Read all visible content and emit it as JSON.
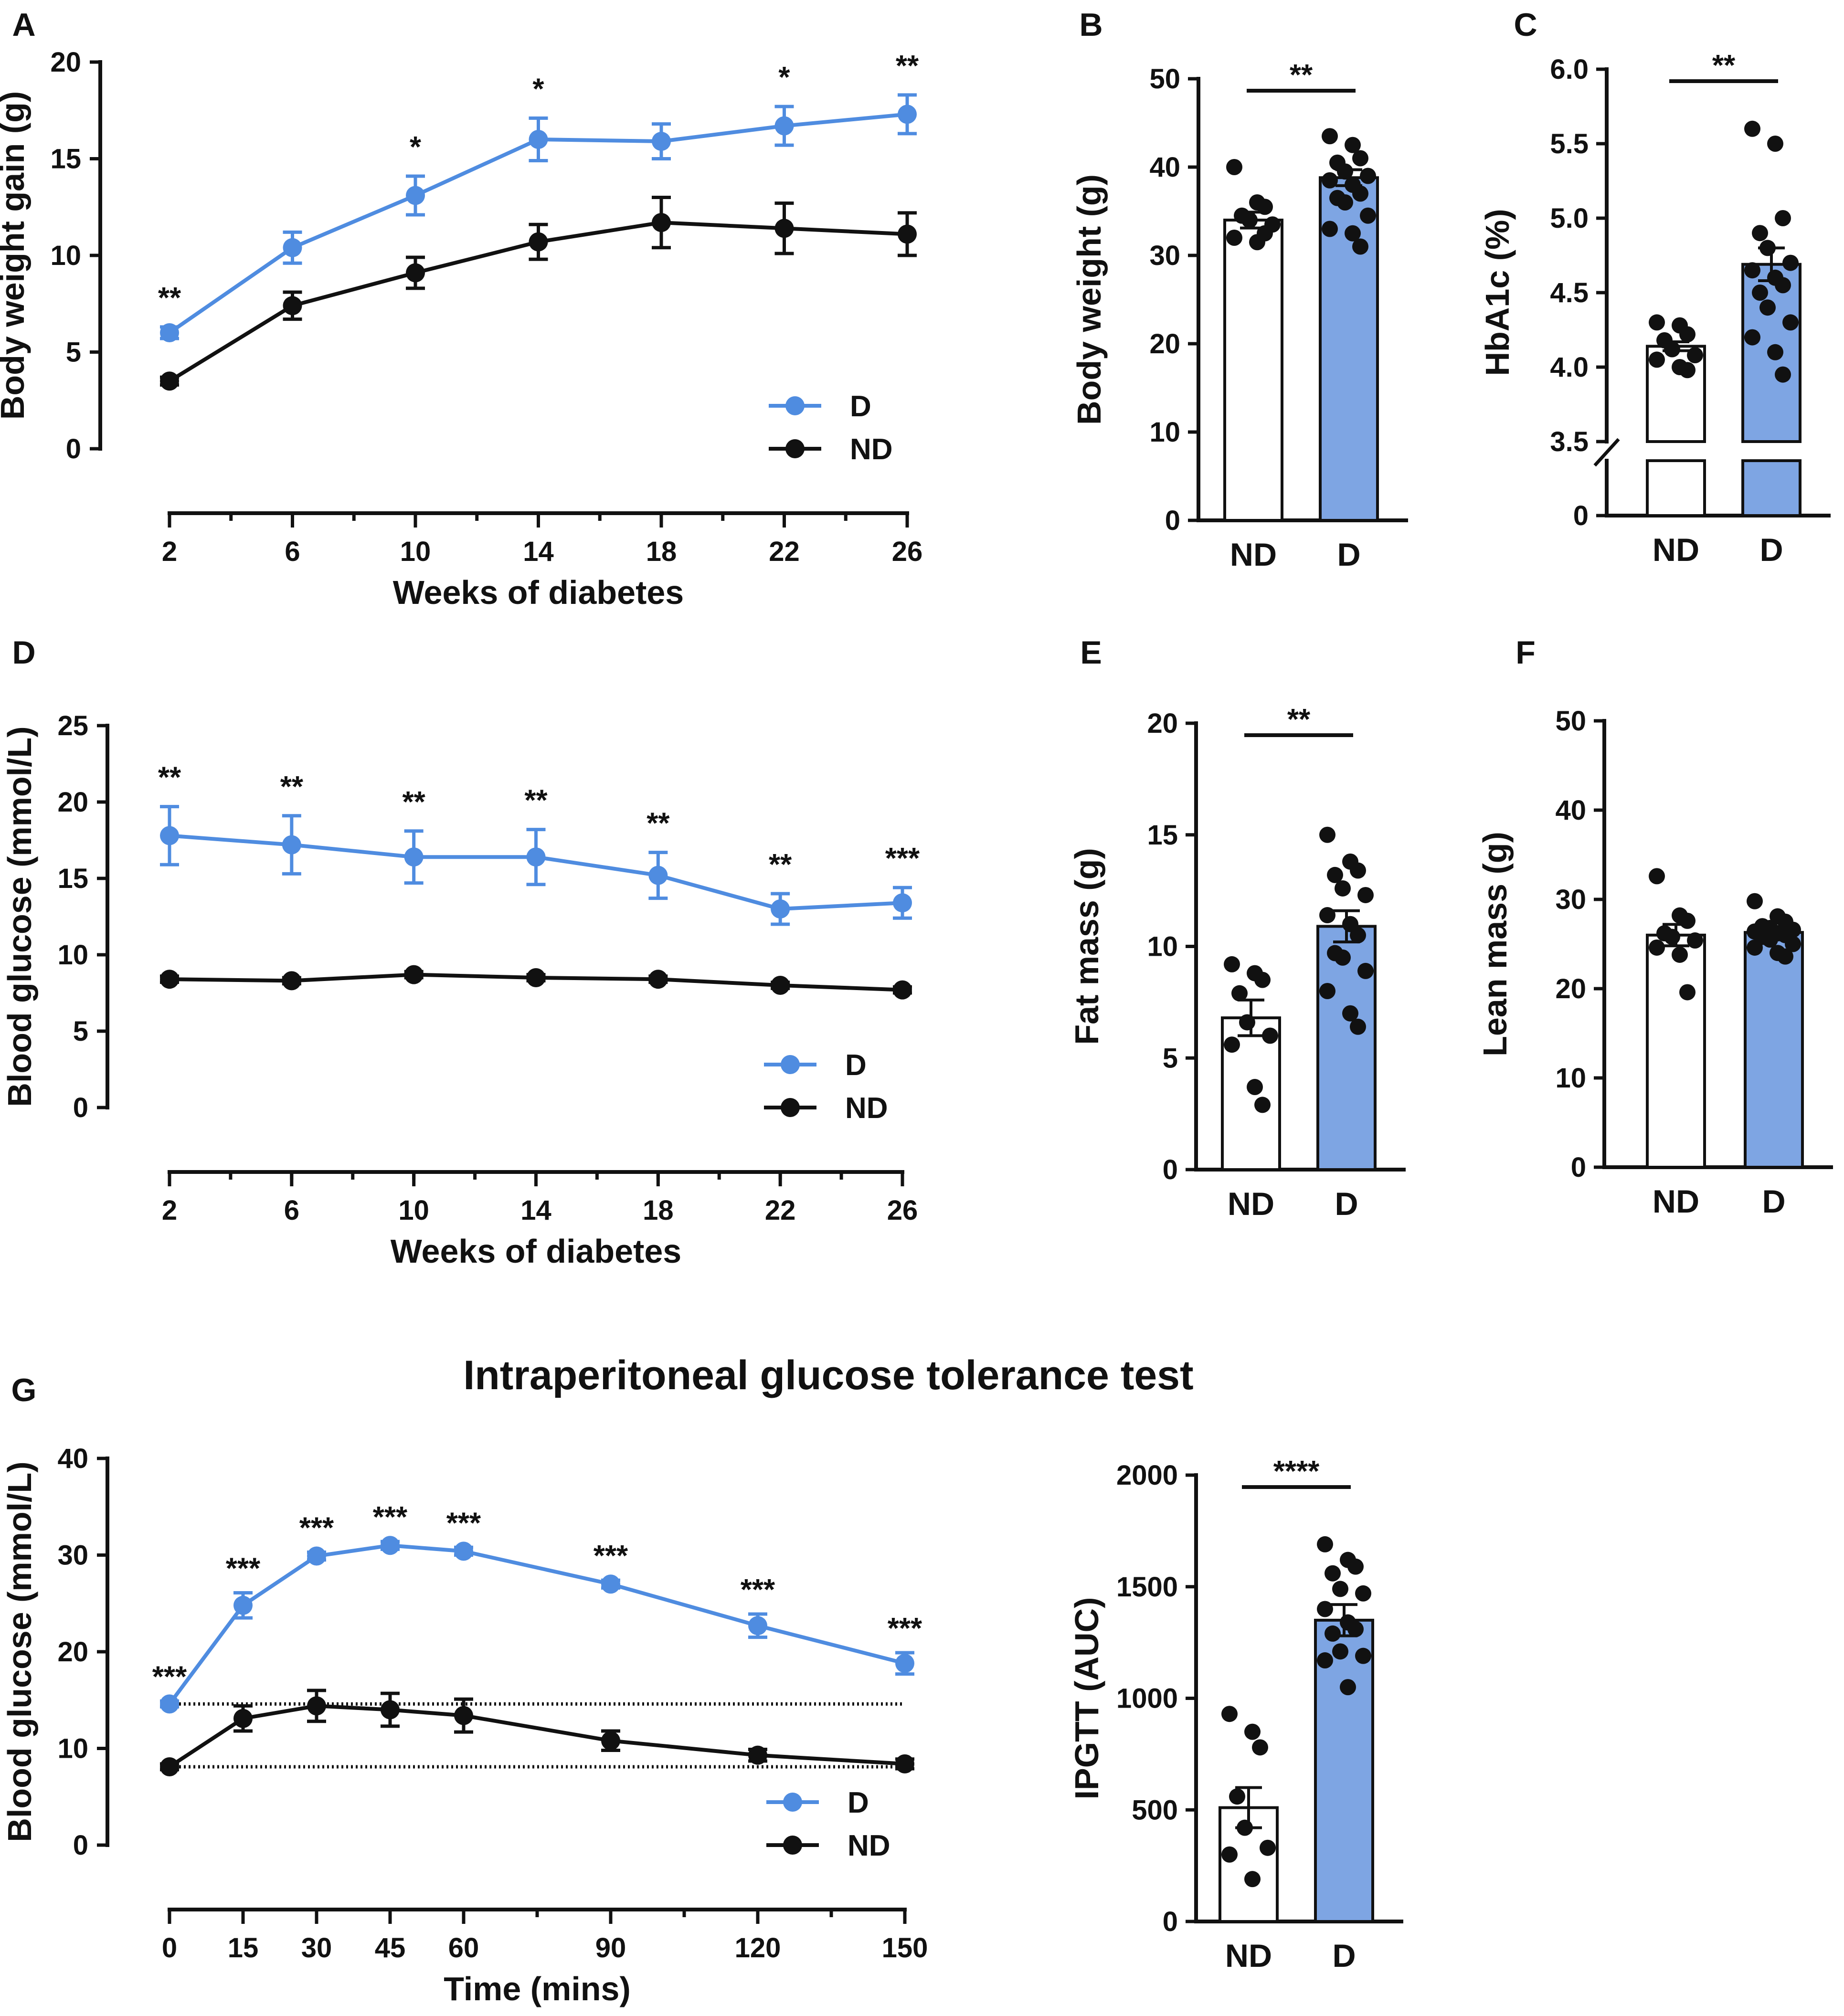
{
  "colors": {
    "d": "#4f8ce0",
    "nd": "#111111",
    "bar_d": "#7ea5e3",
    "bar_nd": "#ffffff"
  },
  "chart_data": [
    {
      "panel": "A",
      "type": "line",
      "xlabel": "Weeks of diabetes",
      "ylabel": "Body weight gain (g)",
      "xlim": [
        2,
        26
      ],
      "ylim": [
        0,
        20
      ],
      "legend": "bottom-right",
      "x": [
        2,
        6,
        10,
        14,
        18,
        22,
        26
      ],
      "xticks": [
        "2",
        "6",
        "10",
        "14",
        "18",
        "22",
        "26"
      ],
      "yticks": [
        "0",
        "5",
        "10",
        "15",
        "20"
      ],
      "series": [
        {
          "name": "D",
          "values": [
            6.0,
            10.4,
            13.1,
            16.0,
            15.9,
            16.7,
            17.3
          ],
          "errors": [
            0.3,
            0.8,
            1.0,
            1.1,
            0.9,
            1.0,
            1.0
          ]
        },
        {
          "name": "ND",
          "values": [
            3.5,
            7.4,
            9.1,
            10.7,
            11.7,
            11.4,
            11.1
          ],
          "errors": [
            0.2,
            0.7,
            0.8,
            0.9,
            1.3,
            1.3,
            1.1
          ]
        }
      ],
      "annotations": [
        "**",
        "",
        "*",
        "*",
        "",
        "*",
        "**"
      ]
    },
    {
      "panel": "B",
      "type": "bar",
      "ylabel": "Body weight (g)",
      "categories": [
        "ND",
        "D"
      ],
      "ylim": [
        0,
        50
      ],
      "yticks": [
        "0",
        "10",
        "20",
        "30",
        "40",
        "50"
      ],
      "values": [
        34.0,
        38.8
      ],
      "errors": [
        0.9,
        0.9
      ],
      "points": [
        [
          40,
          36,
          35.5,
          34.5,
          34,
          33.5,
          32,
          31.5,
          32.5
        ],
        [
          43.5,
          42.5,
          41,
          40.5,
          39.5,
          39,
          38.5,
          38,
          37,
          36.5,
          36,
          34.5,
          33,
          32.5,
          31
        ]
      ],
      "significance": "**"
    },
    {
      "panel": "C",
      "type": "bar",
      "ylabel": "HbA1c (%)",
      "categories": [
        "ND",
        "D"
      ],
      "ylim": [
        3.5,
        6.0
      ],
      "axis_break": true,
      "yticks": [
        "0",
        "3.5",
        "4.0",
        "4.5",
        "5.0",
        "5.5",
        "6.0"
      ],
      "values": [
        4.14,
        4.69
      ],
      "errors": [
        0.03,
        0.11
      ],
      "points": [
        [
          4.3,
          4.28,
          4.22,
          4.18,
          4.12,
          4.08,
          4.05,
          4.0,
          3.98
        ],
        [
          5.6,
          5.5,
          5.0,
          4.9,
          4.8,
          4.7,
          4.65,
          4.6,
          4.55,
          4.5,
          4.4,
          4.3,
          4.2,
          4.1,
          3.95
        ]
      ],
      "significance": "**"
    },
    {
      "panel": "D",
      "type": "line",
      "xlabel": "Weeks of diabetes",
      "ylabel": "Blood glucose (mmol/L)",
      "xlim": [
        2,
        26
      ],
      "ylim": [
        0,
        25
      ],
      "legend": "bottom-right",
      "x": [
        2,
        6,
        10,
        14,
        18,
        22,
        26
      ],
      "xticks": [
        "2",
        "6",
        "10",
        "14",
        "18",
        "22",
        "26"
      ],
      "yticks": [
        "0",
        "5",
        "10",
        "15",
        "20",
        "25"
      ],
      "series": [
        {
          "name": "D",
          "values": [
            17.8,
            17.2,
            16.4,
            16.4,
            15.2,
            13.0,
            13.4
          ],
          "errors": [
            1.9,
            1.9,
            1.7,
            1.8,
            1.5,
            1.0,
            1.0
          ]
        },
        {
          "name": "ND",
          "values": [
            8.4,
            8.3,
            8.7,
            8.5,
            8.4,
            8.0,
            7.7
          ],
          "errors": [
            0.2,
            0.2,
            0.2,
            0.2,
            0.2,
            0.2,
            0.2
          ]
        }
      ],
      "annotations": [
        "**",
        "**",
        "**",
        "**",
        "**",
        "**",
        "***"
      ]
    },
    {
      "panel": "E",
      "type": "bar",
      "ylabel": "Fat mass (g)",
      "categories": [
        "ND",
        "D"
      ],
      "ylim": [
        0,
        20
      ],
      "yticks": [
        "0",
        "5",
        "10",
        "15",
        "20"
      ],
      "values": [
        6.8,
        10.9
      ],
      "errors": [
        0.8,
        0.7
      ],
      "points": [
        [
          9.2,
          8.8,
          8.5,
          7.9,
          6.6,
          6.0,
          5.6,
          3.7,
          2.9
        ],
        [
          15.0,
          13.8,
          13.4,
          13.2,
          12.6,
          12.3,
          11.4,
          11.0,
          10.5,
          9.7,
          9.5,
          8.9,
          8.0,
          7.0,
          6.4
        ]
      ],
      "significance": "**"
    },
    {
      "panel": "F",
      "type": "bar",
      "ylabel": "Lean mass (g)",
      "categories": [
        "ND",
        "D"
      ],
      "ylim": [
        0,
        50
      ],
      "yticks": [
        "0",
        "10",
        "20",
        "30",
        "40",
        "50"
      ],
      "values": [
        26.0,
        26.3
      ],
      "errors": [
        1.2,
        0.5
      ],
      "points": [
        [
          32.6,
          28.2,
          27.6,
          26.2,
          25.8,
          25.4,
          24.6,
          23.8,
          19.6
        ],
        [
          29.8,
          28.1,
          27.5,
          27.0,
          26.8,
          26.6,
          26.4,
          26.2,
          26.0,
          25.8,
          25.5,
          25.0,
          24.6,
          24.0,
          23.6
        ]
      ],
      "significance": ""
    },
    {
      "panel": "G",
      "type": "line",
      "title": "Intraperitoneal glucose tolerance test",
      "xlabel": "Time (mins)",
      "ylabel": "Blood glucose (mmol/L)",
      "xlim": [
        0,
        150
      ],
      "ylim": [
        0,
        40
      ],
      "legend": "bottom-right",
      "x": [
        0,
        15,
        30,
        45,
        60,
        90,
        120,
        150
      ],
      "xticks": [
        "0",
        "15",
        "30",
        "45",
        "60",
        "90",
        "120",
        "150"
      ],
      "yticks": [
        "0",
        "10",
        "20",
        "30",
        "40"
      ],
      "series": [
        {
          "name": "D",
          "values": [
            14.6,
            24.8,
            29.9,
            31.0,
            30.4,
            27.0,
            22.7,
            18.8
          ],
          "errors": [
            0.3,
            1.3,
            0.4,
            0.4,
            0.4,
            0.4,
            1.2,
            1.1
          ]
        },
        {
          "name": "ND",
          "values": [
            8.1,
            13.1,
            14.4,
            14.0,
            13.4,
            10.8,
            9.3,
            8.4
          ],
          "errors": [
            0.3,
            1.3,
            1.6,
            1.7,
            1.7,
            1.0,
            0.6,
            0.5
          ]
        }
      ],
      "reference_lines": [
        14.6,
        8.1
      ],
      "annotations": [
        "***",
        "***",
        "***",
        "***",
        "***",
        "***",
        "***",
        "***"
      ]
    },
    {
      "panel": "G-AUC",
      "type": "bar",
      "ylabel": "IPGTT (AUC)",
      "categories": [
        "ND",
        "D"
      ],
      "ylim": [
        0,
        2000
      ],
      "yticks": [
        "0",
        "500",
        "1000",
        "1500",
        "2000"
      ],
      "values": [
        510,
        1350
      ],
      "errors": [
        90,
        70
      ],
      "points": [
        [
          930,
          850,
          780,
          560,
          420,
          330,
          300,
          190
        ],
        [
          1690,
          1620,
          1590,
          1560,
          1490,
          1470,
          1400,
          1340,
          1310,
          1290,
          1210,
          1190,
          1170,
          1050
        ]
      ],
      "significance": "****"
    }
  ]
}
